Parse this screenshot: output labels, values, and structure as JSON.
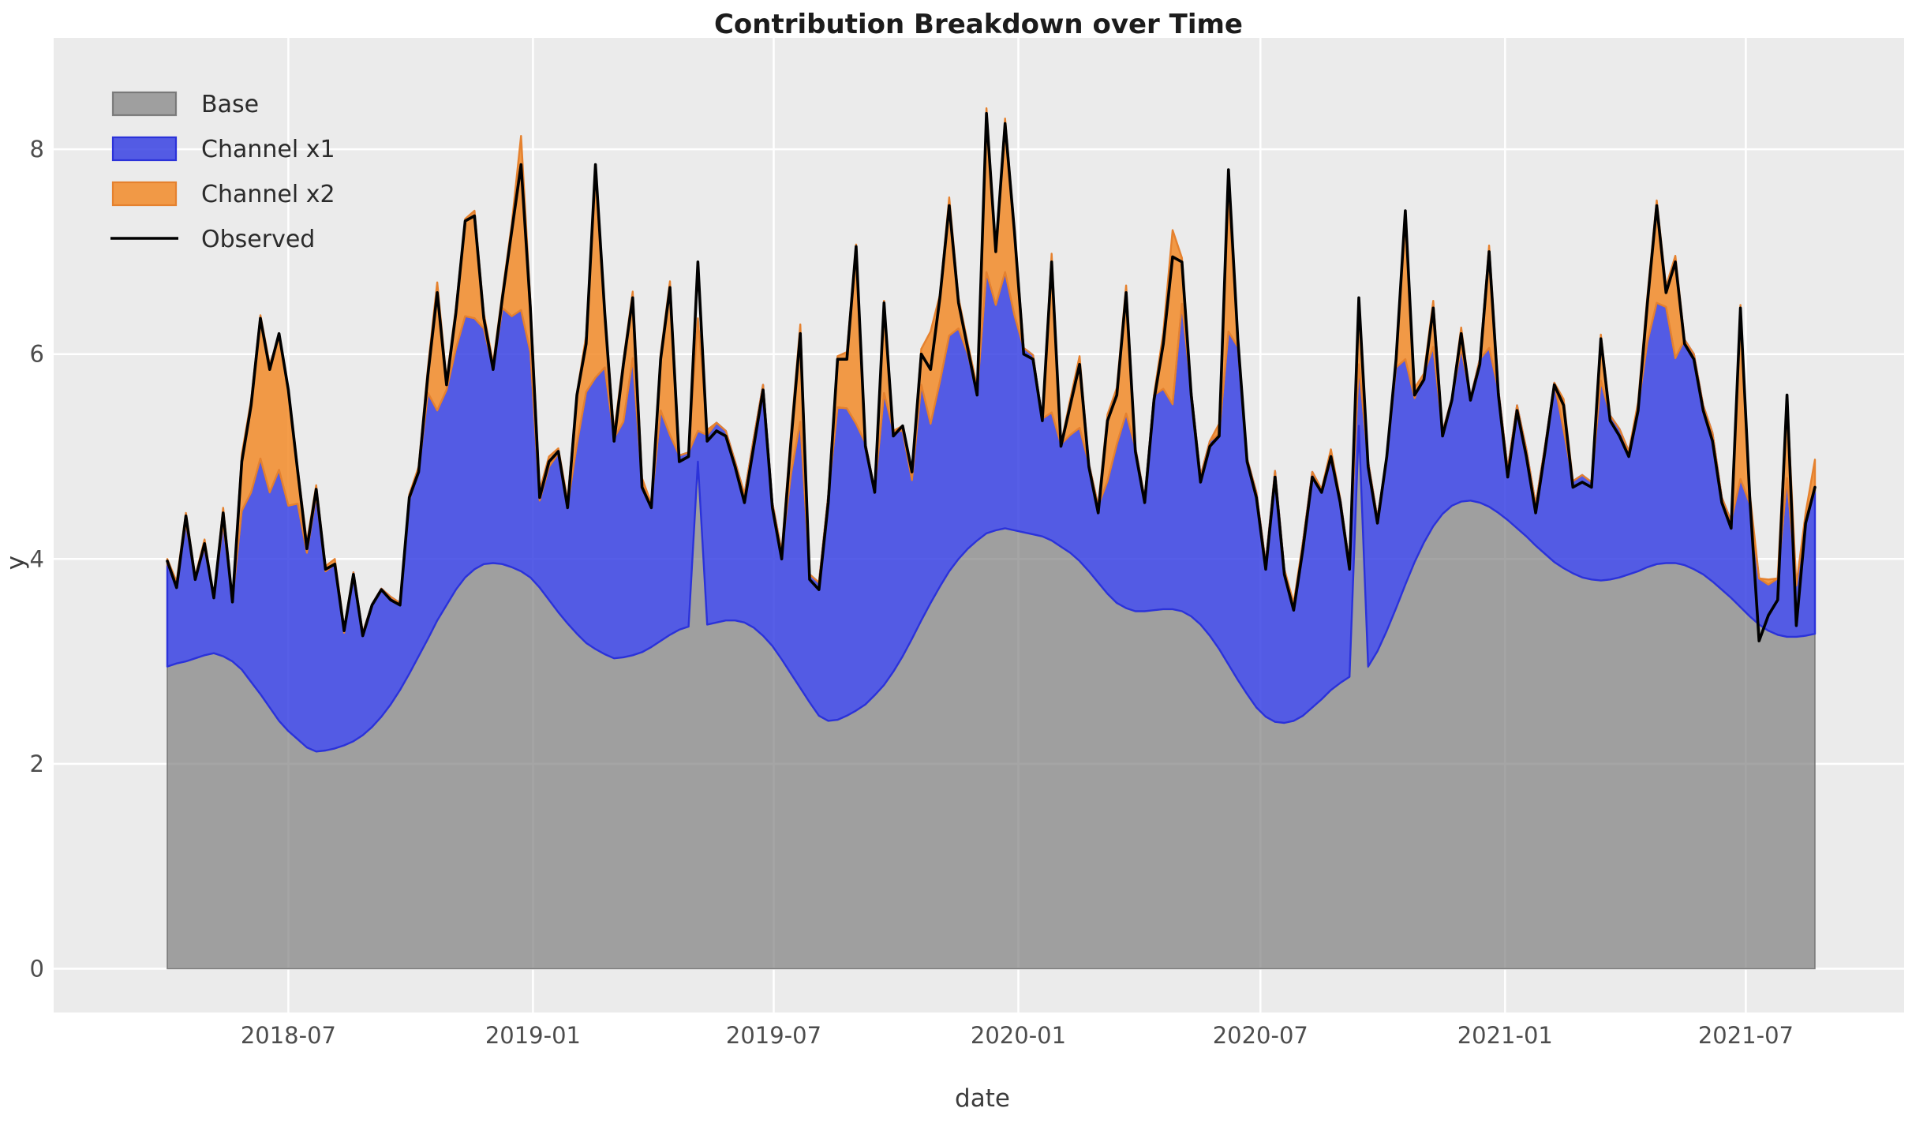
{
  "title": "Contribution Breakdown over Time",
  "xlabel": "date",
  "ylabel": "y",
  "legend": {
    "items": [
      {
        "label": "Base",
        "type": "patch"
      },
      {
        "label": "Channel x1",
        "type": "patch"
      },
      {
        "label": "Channel x2",
        "type": "patch"
      },
      {
        "label": "Observed",
        "type": "line"
      }
    ],
    "position": "upper left"
  },
  "colors": {
    "plot_bg": "#ebebeb",
    "grid": "#ffffff",
    "base_fill": "rgba(127,127,127,0.70)",
    "base_edge": "rgba(110,110,110,0.85)",
    "x1_fill": "rgba(52,61,226,0.83)",
    "x1_edge": "#2b32d9",
    "x2_fill": "rgba(242,139,41,0.85)",
    "x2_edge": "#e5812e",
    "observed": "#000000",
    "tick_text": "#4d4d4d",
    "title_text": "#1c1c1c"
  },
  "chart_data": {
    "type": "area",
    "stacked": true,
    "title": "Contribution Breakdown over Time",
    "xlabel": "date",
    "ylabel": "y",
    "grid": true,
    "legend_position": "upper left",
    "ylim": [
      -0.43,
      9.09
    ],
    "y_ticks": [
      0,
      2,
      4,
      6,
      8
    ],
    "x_tick_labels": [
      "2018-07",
      "2019-01",
      "2019-07",
      "2020-01",
      "2020-07",
      "2021-01",
      "2021-07"
    ],
    "x_tick_dates": [
      "2018-07-01",
      "2019-01-01",
      "2019-07-01",
      "2020-01-01",
      "2020-07-01",
      "2021-01-01",
      "2021-07-01"
    ],
    "x": [
      "2018-04-01",
      "2018-04-08",
      "2018-04-15",
      "2018-04-22",
      "2018-04-29",
      "2018-05-06",
      "2018-05-13",
      "2018-05-20",
      "2018-05-27",
      "2018-06-03",
      "2018-06-10",
      "2018-06-17",
      "2018-06-24",
      "2018-07-01",
      "2018-07-08",
      "2018-07-15",
      "2018-07-22",
      "2018-07-29",
      "2018-08-05",
      "2018-08-12",
      "2018-08-19",
      "2018-08-26",
      "2018-09-02",
      "2018-09-09",
      "2018-09-16",
      "2018-09-23",
      "2018-09-30",
      "2018-10-07",
      "2018-10-14",
      "2018-10-21",
      "2018-10-28",
      "2018-11-04",
      "2018-11-11",
      "2018-11-18",
      "2018-11-25",
      "2018-12-02",
      "2018-12-09",
      "2018-12-16",
      "2018-12-23",
      "2018-12-30",
      "2019-01-06",
      "2019-01-13",
      "2019-01-20",
      "2019-01-27",
      "2019-02-03",
      "2019-02-10",
      "2019-02-17",
      "2019-02-24",
      "2019-03-03",
      "2019-03-10",
      "2019-03-17",
      "2019-03-24",
      "2019-03-31",
      "2019-04-07",
      "2019-04-14",
      "2019-04-21",
      "2019-04-28",
      "2019-05-05",
      "2019-05-12",
      "2019-05-19",
      "2019-05-26",
      "2019-06-02",
      "2019-06-09",
      "2019-06-16",
      "2019-06-23",
      "2019-06-30",
      "2019-07-07",
      "2019-07-14",
      "2019-07-21",
      "2019-07-28",
      "2019-08-04",
      "2019-08-11",
      "2019-08-18",
      "2019-08-25",
      "2019-09-01",
      "2019-09-08",
      "2019-09-15",
      "2019-09-22",
      "2019-09-29",
      "2019-10-06",
      "2019-10-13",
      "2019-10-20",
      "2019-10-27",
      "2019-11-03",
      "2019-11-10",
      "2019-11-17",
      "2019-11-24",
      "2019-12-01",
      "2019-12-08",
      "2019-12-15",
      "2019-12-22",
      "2019-12-29",
      "2020-01-05",
      "2020-01-12",
      "2020-01-19",
      "2020-01-26",
      "2020-02-02",
      "2020-02-09",
      "2020-02-16",
      "2020-02-23",
      "2020-03-01",
      "2020-03-08",
      "2020-03-15",
      "2020-03-22",
      "2020-03-29",
      "2020-04-05",
      "2020-04-12",
      "2020-04-19",
      "2020-04-26",
      "2020-05-03",
      "2020-05-10",
      "2020-05-17",
      "2020-05-24",
      "2020-05-31",
      "2020-06-07",
      "2020-06-14",
      "2020-06-21",
      "2020-06-28",
      "2020-07-05",
      "2020-07-12",
      "2020-07-19",
      "2020-07-26",
      "2020-08-02",
      "2020-08-09",
      "2020-08-16",
      "2020-08-23",
      "2020-08-30",
      "2020-09-06",
      "2020-09-13",
      "2020-09-20",
      "2020-09-27",
      "2020-10-04",
      "2020-10-11",
      "2020-10-18",
      "2020-10-25",
      "2020-11-01",
      "2020-11-08",
      "2020-11-15",
      "2020-11-22",
      "2020-11-29",
      "2020-12-06",
      "2020-12-13",
      "2020-12-20",
      "2020-12-27",
      "2021-01-03",
      "2021-01-10",
      "2021-01-17",
      "2021-01-24",
      "2021-01-31",
      "2021-02-07",
      "2021-02-14",
      "2021-02-21",
      "2021-02-28",
      "2021-03-07",
      "2021-03-14",
      "2021-03-21",
      "2021-03-28",
      "2021-04-04",
      "2021-04-11",
      "2021-04-18",
      "2021-04-25",
      "2021-05-02",
      "2021-05-09",
      "2021-05-16",
      "2021-05-23",
      "2021-05-30",
      "2021-06-06",
      "2021-06-13",
      "2021-06-20",
      "2021-06-27",
      "2021-07-04",
      "2021-07-11",
      "2021-07-18",
      "2021-07-25",
      "2021-08-01",
      "2021-08-08",
      "2021-08-15",
      "2021-08-22"
    ],
    "series": [
      {
        "name": "Base",
        "values": [
          2.95,
          2.98,
          3.0,
          3.03,
          3.06,
          3.08,
          3.05,
          3.0,
          2.92,
          2.8,
          2.68,
          2.55,
          2.42,
          2.32,
          2.24,
          2.16,
          2.12,
          2.13,
          2.15,
          2.18,
          2.22,
          2.28,
          2.36,
          2.46,
          2.58,
          2.72,
          2.88,
          3.05,
          3.22,
          3.4,
          3.55,
          3.7,
          3.82,
          3.9,
          3.95,
          3.96,
          3.95,
          3.92,
          3.88,
          3.82,
          3.72,
          3.6,
          3.48,
          3.37,
          3.27,
          3.18,
          3.12,
          3.07,
          3.03,
          3.04,
          3.06,
          3.09,
          3.14,
          3.2,
          3.26,
          3.31,
          3.34,
          4.95,
          3.36,
          3.38,
          3.4,
          3.4,
          3.38,
          3.33,
          3.25,
          3.15,
          3.02,
          2.88,
          2.74,
          2.6,
          2.47,
          2.42,
          2.43,
          2.47,
          2.52,
          2.58,
          2.67,
          2.77,
          2.9,
          3.05,
          3.22,
          3.4,
          3.57,
          3.73,
          3.88,
          4.0,
          4.1,
          4.18,
          4.25,
          4.28,
          4.3,
          4.28,
          4.26,
          4.24,
          4.22,
          4.18,
          4.12,
          4.06,
          3.98,
          3.88,
          3.77,
          3.66,
          3.57,
          3.52,
          3.49,
          3.49,
          3.5,
          3.51,
          3.51,
          3.49,
          3.44,
          3.36,
          3.25,
          3.12,
          2.97,
          2.82,
          2.68,
          2.55,
          2.46,
          2.41,
          2.4,
          2.42,
          2.47,
          2.55,
          2.63,
          2.72,
          2.79,
          2.85,
          5.3,
          2.95,
          3.1,
          3.3,
          3.52,
          3.75,
          3.97,
          4.16,
          4.32,
          4.44,
          4.52,
          4.56,
          4.57,
          4.55,
          4.51,
          4.45,
          4.38,
          4.3,
          4.22,
          4.13,
          4.05,
          3.97,
          3.91,
          3.86,
          3.82,
          3.8,
          3.79,
          3.8,
          3.82,
          3.85,
          3.88,
          3.92,
          3.95,
          3.96,
          3.96,
          3.94,
          3.9,
          3.85,
          3.78,
          3.7,
          3.62,
          3.53,
          3.44,
          3.36,
          3.3,
          3.26,
          3.24,
          3.24,
          3.25,
          3.27
        ]
      },
      {
        "name": "Channel x1",
        "values": [
          1.0,
          0.8,
          1.35,
          0.8,
          1.05,
          0.55,
          1.3,
          0.6,
          1.55,
          1.85,
          2.3,
          2.1,
          2.45,
          2.2,
          2.3,
          1.9,
          2.5,
          1.75,
          1.8,
          1.1,
          1.65,
          1.0,
          1.2,
          1.25,
          1.05,
          0.85,
          1.7,
          1.8,
          2.4,
          2.05,
          2.1,
          2.35,
          2.55,
          2.45,
          2.3,
          1.9,
          2.5,
          2.45,
          2.55,
          2.2,
          0.85,
          1.3,
          1.55,
          1.15,
          1.85,
          2.45,
          2.65,
          2.8,
          2.15,
          2.3,
          2.9,
          1.65,
          1.4,
          2.25,
          1.95,
          1.7,
          1.7,
          0.3,
          1.85,
          1.95,
          1.85,
          1.55,
          1.25,
          1.85,
          2.45,
          1.4,
          1.05,
          1.95,
          2.6,
          1.25,
          1.3,
          2.2,
          3.05,
          3.0,
          2.8,
          2.55,
          2.0,
          2.85,
          2.35,
          2.2,
          1.55,
          2.3,
          1.75,
          2.0,
          2.3,
          2.25,
          1.9,
          1.45,
          2.55,
          2.2,
          2.5,
          2.1,
          1.8,
          1.75,
          1.15,
          1.25,
          1.0,
          1.15,
          1.3,
          1.05,
          0.75,
          1.1,
          1.55,
          1.9,
          1.6,
          1.1,
          2.1,
          2.15,
          2.0,
          3.0,
          2.2,
          1.45,
          1.9,
          2.1,
          3.25,
          3.25,
          2.3,
          2.1,
          1.5,
          2.45,
          1.5,
          1.1,
          1.7,
          2.3,
          2.05,
          2.25,
          1.8,
          1.1,
          0.6,
          2.0,
          1.3,
          1.7,
          2.35,
          2.2,
          1.6,
          1.65,
          1.75,
          0.8,
          1.05,
          1.5,
          1.0,
          1.4,
          1.55,
          1.2,
          0.5,
          1.2,
          0.85,
          0.4,
          1.05,
          1.75,
          1.35,
          0.9,
          1.0,
          0.95,
          1.95,
          1.6,
          1.45,
          1.2,
          1.6,
          2.2,
          2.55,
          2.5,
          2.0,
          2.2,
          2.1,
          1.65,
          1.45,
          0.9,
          0.75,
          1.25,
          1.1,
          0.45,
          0.45,
          0.55,
          1.55,
          0.5,
          1.15,
          1.4
        ]
      },
      {
        "name": "Channel x2",
        "values": [
          0.05,
          0.0,
          0.1,
          0.0,
          0.08,
          0.0,
          0.15,
          0.0,
          0.55,
          0.9,
          1.4,
          1.25,
          1.3,
          1.15,
          0.35,
          0.1,
          0.1,
          0.05,
          0.05,
          0.05,
          0.0,
          0.0,
          0.0,
          0.0,
          0.0,
          0.0,
          0.05,
          0.05,
          0.25,
          1.25,
          0.1,
          0.4,
          0.95,
          1.05,
          0.15,
          0.05,
          0.15,
          0.9,
          1.7,
          0.5,
          0.1,
          0.1,
          0.05,
          0.05,
          0.5,
          0.55,
          2.05,
          0.55,
          0.05,
          0.6,
          0.65,
          0.05,
          0.0,
          0.55,
          1.5,
          0.0,
          0.0,
          1.1,
          0.05,
          0.0,
          0.0,
          0.0,
          0.0,
          0.0,
          0.0,
          0.0,
          0.0,
          0.4,
          0.95,
          0.0,
          0.0,
          0.0,
          0.5,
          0.55,
          1.75,
          0.0,
          0.0,
          0.9,
          0.0,
          0.05,
          0.1,
          0.35,
          0.9,
          0.85,
          1.35,
          0.3,
          0.1,
          0.05,
          1.6,
          0.55,
          1.5,
          0.85,
          0.0,
          0.0,
          0.0,
          1.55,
          0.0,
          0.35,
          0.7,
          0.0,
          0.0,
          0.65,
          0.55,
          1.25,
          0.0,
          0.0,
          0.0,
          0.55,
          1.7,
          0.45,
          0.0,
          0.0,
          0.0,
          0.1,
          1.3,
          0.1,
          0.0,
          0.0,
          0.0,
          0.0,
          0.0,
          0.05,
          0.0,
          0.0,
          0.0,
          0.1,
          0.0,
          0.0,
          0.65,
          0.0,
          0.0,
          0.0,
          0.1,
          1.4,
          0.1,
          0.0,
          0.45,
          0.0,
          0.0,
          0.2,
          0.0,
          0.0,
          1.0,
          0.0,
          0.0,
          0.0,
          0.0,
          0.0,
          0.0,
          0.0,
          0.3,
          0.0,
          0.0,
          0.0,
          0.45,
          0.0,
          0.0,
          0.0,
          0.05,
          0.45,
          1.0,
          0.2,
          1.0,
          0.0,
          0.0,
          0.0,
          0.0,
          0.0,
          0.0,
          1.7,
          0.1,
          0.0,
          0.05,
          0.0,
          0.8,
          0.0,
          0.05,
          0.3
        ]
      }
    ],
    "observed": {
      "name": "Observed",
      "values": [
        3.98,
        3.72,
        4.42,
        3.8,
        4.15,
        3.62,
        4.45,
        3.58,
        4.95,
        5.5,
        6.35,
        5.85,
        6.2,
        5.65,
        4.86,
        4.1,
        4.68,
        3.9,
        3.95,
        3.3,
        3.85,
        3.25,
        3.55,
        3.7,
        3.6,
        3.55,
        4.6,
        4.85,
        5.8,
        6.6,
        5.7,
        6.4,
        7.3,
        7.35,
        6.35,
        5.85,
        6.55,
        7.2,
        7.85,
        6.45,
        4.6,
        4.95,
        5.05,
        4.5,
        5.6,
        6.1,
        7.85,
        6.4,
        5.15,
        5.9,
        6.55,
        4.7,
        4.5,
        5.95,
        6.65,
        4.95,
        5.0,
        6.9,
        5.15,
        5.25,
        5.2,
        4.9,
        4.55,
        5.1,
        5.65,
        4.5,
        4.0,
        5.15,
        6.2,
        3.8,
        3.7,
        4.55,
        5.95,
        5.95,
        7.05,
        5.1,
        4.65,
        6.5,
        5.2,
        5.3,
        4.85,
        6.0,
        5.85,
        6.55,
        7.45,
        6.5,
        6.05,
        5.6,
        8.35,
        7.0,
        8.25,
        7.2,
        6.0,
        5.95,
        5.35,
        6.9,
        5.1,
        5.5,
        5.9,
        4.9,
        4.45,
        5.35,
        5.6,
        6.6,
        5.05,
        4.55,
        5.55,
        6.1,
        6.95,
        6.9,
        5.6,
        4.75,
        5.1,
        5.2,
        7.8,
        6.15,
        4.95,
        4.6,
        3.9,
        4.8,
        3.85,
        3.5,
        4.1,
        4.8,
        4.65,
        5.0,
        4.55,
        3.9,
        6.55,
        4.9,
        4.35,
        5.0,
        5.95,
        7.4,
        5.6,
        5.75,
        6.45,
        5.2,
        5.55,
        6.2,
        5.55,
        5.9,
        7.0,
        5.6,
        4.8,
        5.45,
        5.0,
        4.45,
        5.05,
        5.7,
        5.5,
        4.7,
        4.75,
        4.7,
        6.15,
        5.35,
        5.2,
        5.0,
        5.45,
        6.5,
        7.45,
        6.6,
        6.9,
        6.1,
        5.95,
        5.45,
        5.15,
        4.55,
        4.3,
        6.45,
        4.6,
        3.2,
        3.45,
        3.6,
        5.6,
        3.35,
        4.35,
        4.7
      ]
    }
  }
}
